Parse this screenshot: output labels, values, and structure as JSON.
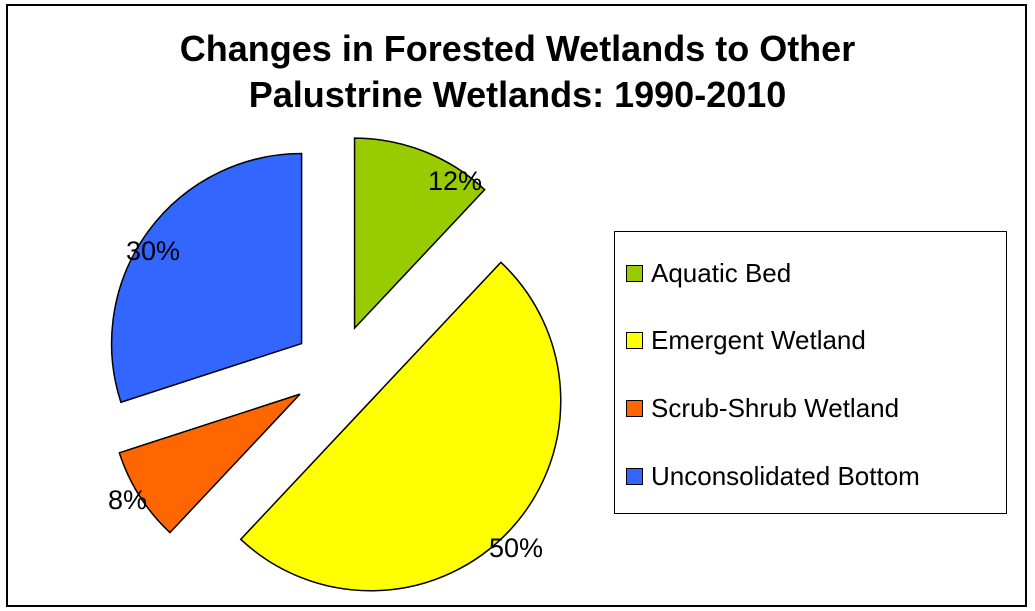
{
  "chart_data": {
    "type": "pie",
    "title": [
      "Changes in Forested Wetlands to Other",
      "Palustrine Wetlands: 1990-2010"
    ],
    "categories": [
      "Aquatic Bed",
      "Emergent Wetland",
      "Scrub-Shrub Wetland",
      "Unconsolidated Bottom"
    ],
    "values": [
      12,
      50,
      8,
      30
    ],
    "value_labels": [
      "12%",
      "50%",
      "8%",
      "30%"
    ],
    "colors": [
      "#99CC00",
      "#FFFF00",
      "#FF6600",
      "#3366FF"
    ],
    "exploded": true,
    "legend_position": "right"
  }
}
